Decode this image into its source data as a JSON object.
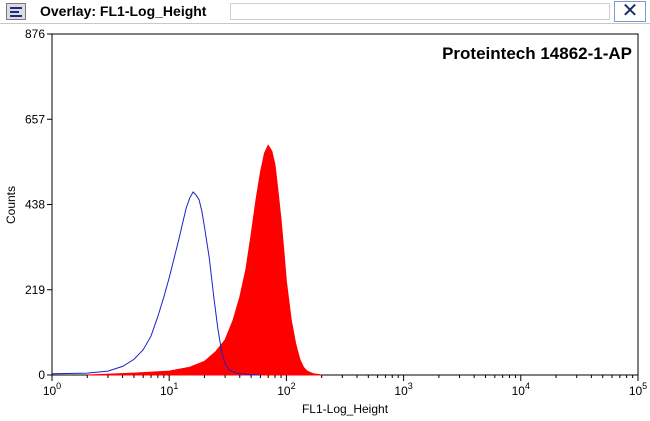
{
  "window": {
    "title": "Overlay: FL1-Log_Height",
    "close_glyph": "✕"
  },
  "chart_data": {
    "type": "area",
    "annotation": "Proteintech 14862-1-AP",
    "xlabel": "FL1-Log_Height",
    "ylabel": "Counts",
    "x_scale": "log",
    "xlim": [
      1,
      100000
    ],
    "ylim": [
      0,
      876
    ],
    "x_ticks": [
      {
        "value": 1,
        "base": "10",
        "exp": "0"
      },
      {
        "value": 10,
        "base": "10",
        "exp": "1"
      },
      {
        "value": 100,
        "base": "10",
        "exp": "2"
      },
      {
        "value": 1000,
        "base": "10",
        "exp": "3"
      },
      {
        "value": 10000,
        "base": "10",
        "exp": "4"
      },
      {
        "value": 100000,
        "base": "10",
        "exp": "5"
      }
    ],
    "y_ticks": [
      0,
      219,
      438,
      657,
      876
    ],
    "grid": false,
    "series": [
      {
        "style": "outline",
        "color": "#1a22c8",
        "x": [
          1,
          2,
          3,
          4,
          5,
          6,
          7,
          8,
          9,
          10,
          11,
          12,
          13,
          14,
          15,
          16,
          17,
          18,
          19,
          20,
          22,
          24,
          26,
          28,
          30,
          32,
          35,
          40,
          50,
          60
        ],
        "y": [
          3,
          5,
          10,
          22,
          40,
          65,
          100,
          150,
          200,
          250,
          300,
          345,
          390,
          430,
          455,
          470,
          462,
          450,
          420,
          380,
          300,
          200,
          120,
          60,
          30,
          15,
          8,
          3,
          1,
          0
        ]
      },
      {
        "style": "filled",
        "color": "#ff0000",
        "x": [
          2,
          5,
          10,
          15,
          20,
          25,
          30,
          35,
          40,
          45,
          50,
          55,
          60,
          65,
          70,
          75,
          80,
          85,
          90,
          95,
          100,
          110,
          120,
          130,
          140,
          150,
          170,
          200
        ],
        "y": [
          0,
          5,
          10,
          20,
          35,
          60,
          90,
          140,
          200,
          270,
          360,
          450,
          520,
          570,
          590,
          575,
          540,
          470,
          400,
          320,
          240,
          140,
          80,
          40,
          20,
          10,
          3,
          0
        ]
      }
    ]
  }
}
